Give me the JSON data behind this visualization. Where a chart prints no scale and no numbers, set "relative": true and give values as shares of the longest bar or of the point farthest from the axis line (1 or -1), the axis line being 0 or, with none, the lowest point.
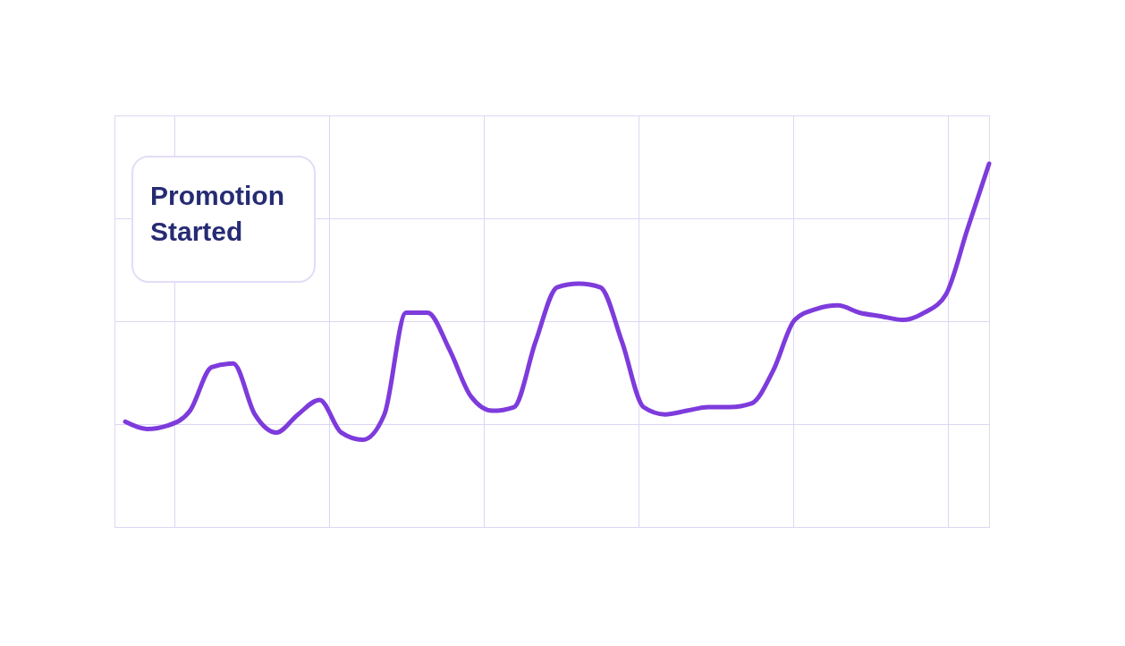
{
  "chart_data": {
    "type": "line",
    "relative": true,
    "grid": true,
    "marker": "none",
    "line_style": "solid",
    "categories": [
      null,
      null,
      null,
      null,
      null,
      null,
      null,
      null,
      null,
      null,
      null,
      null,
      null,
      null,
      null,
      null,
      null,
      null,
      null,
      null,
      null,
      null,
      null,
      null,
      null,
      null,
      null,
      null,
      null,
      null,
      null,
      null,
      null,
      null,
      null,
      null,
      null,
      null,
      null,
      null,
      null
    ],
    "series": [
      {
        "color": "#7e3bdc",
        "values": [
          0.29,
          0.27,
          0.28,
          0.32,
          0.44,
          0.45,
          0.31,
          0.26,
          0.31,
          0.35,
          0.26,
          0.24,
          0.31,
          0.59,
          0.59,
          0.49,
          0.36,
          0.32,
          0.33,
          0.51,
          0.66,
          0.67,
          0.66,
          0.51,
          0.33,
          0.31,
          0.32,
          0.33,
          0.33,
          0.34,
          0.43,
          0.57,
          0.6,
          0.61,
          0.59,
          0.58,
          0.57,
          0.59,
          0.64,
          0.82,
          1
        ]
      }
    ],
    "annotations": [
      "Promotion Started"
    ]
  }
}
